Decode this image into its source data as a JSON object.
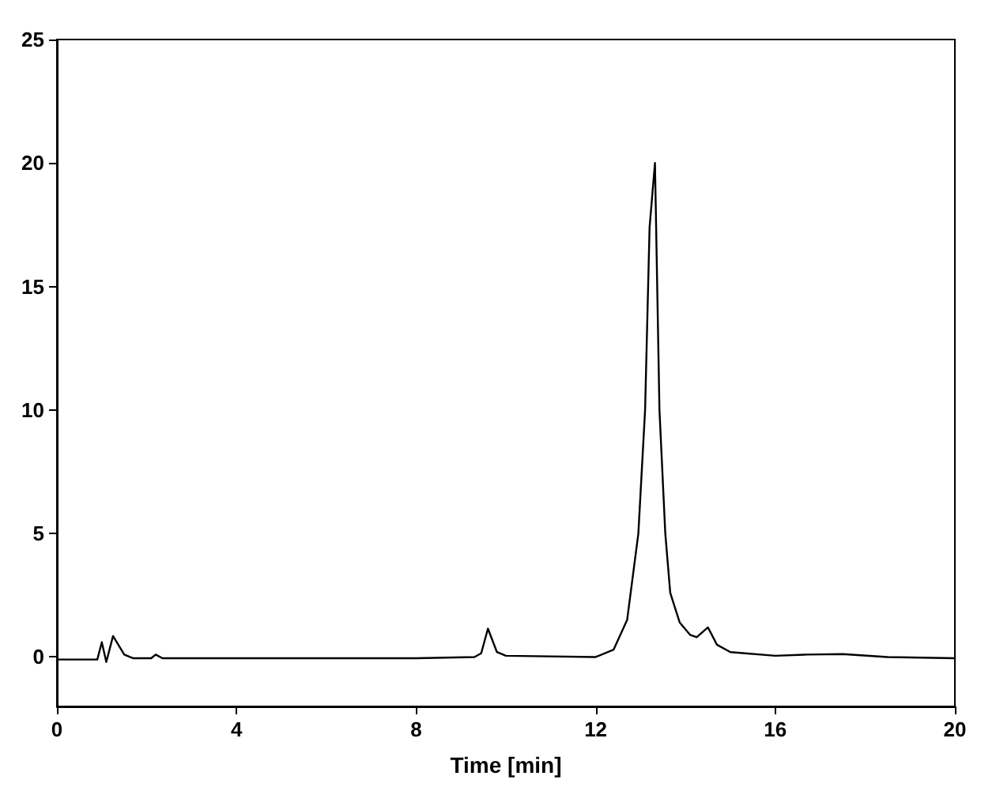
{
  "chart_data": {
    "type": "line",
    "xlabel": "Time [min]",
    "xlim": [
      0,
      20
    ],
    "xticks": [
      0,
      4,
      8,
      12,
      16,
      20
    ],
    "ylim": [
      -2,
      25
    ],
    "yticks": [
      0,
      5,
      10,
      15,
      20,
      25
    ],
    "grid": false,
    "marker": "none",
    "line_style": "solid",
    "series": [
      {
        "color": "#000000",
        "x": [
          0,
          0.9,
          1.0,
          1.1,
          1.25,
          1.5,
          1.7,
          2.1,
          2.2,
          2.35,
          4,
          6,
          8,
          9.3,
          9.45,
          9.6,
          9.8,
          10,
          12,
          12.4,
          12.7,
          12.95,
          13.1,
          13.2,
          13.32,
          13.42,
          13.55,
          13.66,
          13.87,
          14.1,
          14.25,
          14.5,
          14.7,
          15,
          16,
          16.7,
          17.5,
          18.5,
          20
        ],
        "values": [
          -0.1,
          -0.1,
          0.6,
          -0.2,
          0.85,
          0.1,
          -0.05,
          -0.05,
          0.1,
          -0.05,
          -0.05,
          -0.05,
          -0.05,
          0,
          0.15,
          1.15,
          0.2,
          0.05,
          0,
          0.3,
          1.5,
          5,
          10,
          17.4,
          20,
          10,
          5,
          2.6,
          1.4,
          0.9,
          0.8,
          1.2,
          0.5,
          0.2,
          0.05,
          0.1,
          0.12,
          0,
          -0.05
        ]
      }
    ]
  }
}
